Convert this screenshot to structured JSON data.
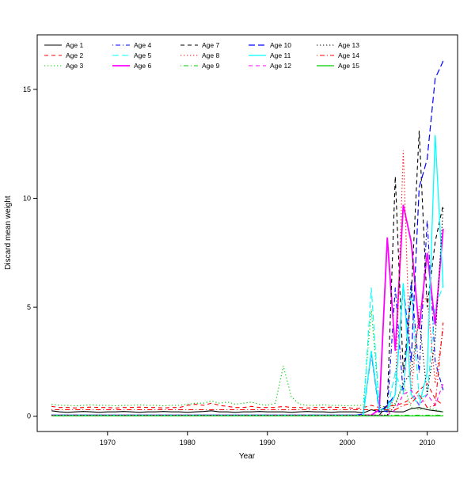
{
  "chart_data": {
    "type": "line",
    "title": "",
    "xlabel": "Year",
    "ylabel": "Discard mean weight",
    "legend_position": "top-left",
    "grid": false,
    "xticks": [
      1970,
      1980,
      1990,
      2000,
      2010
    ],
    "yticks": [
      0,
      5,
      10,
      15
    ],
    "xlim": [
      1963,
      2012
    ],
    "ylim": [
      0,
      16.3
    ],
    "xlim_internal": [
      1961.2,
      2013.8
    ],
    "ylim_internal": [
      -0.7,
      17.5
    ],
    "x": [
      1963,
      1964,
      1965,
      1966,
      1967,
      1968,
      1969,
      1970,
      1971,
      1972,
      1973,
      1974,
      1975,
      1976,
      1977,
      1978,
      1979,
      1980,
      1981,
      1982,
      1983,
      1984,
      1985,
      1986,
      1987,
      1988,
      1989,
      1990,
      1991,
      1992,
      1993,
      1994,
      1995,
      1996,
      1997,
      1998,
      1999,
      2000,
      2001,
      2002,
      2003,
      2004,
      2005,
      2006,
      2007,
      2008,
      2009,
      2010,
      2011,
      2012
    ],
    "series": [
      {
        "name": "Age 1",
        "color": "#000000",
        "line_style": "solid",
        "width": 1.1,
        "values": [
          0.25,
          0.2,
          0.18,
          0.2,
          0.22,
          0.2,
          0.18,
          0.2,
          0.2,
          0.22,
          0.2,
          0.18,
          0.2,
          0.2,
          0.22,
          0.2,
          0.2,
          0.18,
          0.2,
          0.22,
          0.25,
          0.2,
          0.2,
          0.18,
          0.2,
          0.2,
          0.22,
          0.2,
          0.2,
          0.2,
          0.18,
          0.2,
          0.22,
          0.2,
          0.2,
          0.18,
          0.2,
          0.2,
          0.2,
          0.15,
          0.3,
          0.2,
          0.25,
          0.2,
          0.2,
          0.35,
          0.4,
          0.3,
          0.25,
          0.2
        ]
      },
      {
        "name": "Age 2",
        "color": "#FF0000",
        "line_style": "dashed",
        "width": 1.1,
        "values": [
          0.45,
          0.4,
          0.4,
          0.38,
          0.4,
          0.42,
          0.4,
          0.4,
          0.38,
          0.4,
          0.4,
          0.42,
          0.4,
          0.4,
          0.38,
          0.4,
          0.4,
          0.5,
          0.55,
          0.5,
          0.6,
          0.5,
          0.45,
          0.4,
          0.4,
          0.45,
          0.4,
          0.4,
          0.4,
          0.45,
          0.4,
          0.4,
          0.38,
          0.4,
          0.4,
          0.42,
          0.4,
          0.4,
          0.35,
          0.4,
          0.5,
          0.4,
          0.45,
          0.5,
          0.6,
          0.8,
          1.2,
          1.5,
          0.8,
          0.5
        ]
      },
      {
        "name": "Age 3",
        "color": "#00CD00",
        "line_style": "dotted",
        "width": 1.1,
        "values": [
          0.55,
          0.5,
          0.5,
          0.48,
          0.5,
          0.52,
          0.5,
          0.5,
          0.48,
          0.5,
          0.5,
          0.52,
          0.5,
          0.5,
          0.48,
          0.5,
          0.5,
          0.55,
          0.6,
          0.6,
          0.7,
          0.6,
          0.65,
          0.55,
          0.6,
          0.65,
          0.55,
          0.5,
          0.6,
          2.3,
          0.9,
          0.55,
          0.5,
          0.5,
          0.52,
          0.5,
          0.5,
          0.48,
          0.5,
          0.5,
          4.9,
          0.5,
          0.4,
          0.6,
          1.5,
          0.4,
          0.3,
          0.4,
          0.3,
          0.2
        ]
      },
      {
        "name": "Age 4",
        "color": "#0000FF",
        "line_style": "dash-dot",
        "width": 1.1,
        "values": [
          0.05,
          0.05,
          0.05,
          0.05,
          0.05,
          0.05,
          0.05,
          0.05,
          0.05,
          0.05,
          0.05,
          0.05,
          0.05,
          0.05,
          0.05,
          0.05,
          0.05,
          0.05,
          0.05,
          0.05,
          0.05,
          0.05,
          0.05,
          0.05,
          0.05,
          0.05,
          0.05,
          0.05,
          0.05,
          0.05,
          0.05,
          0.05,
          0.05,
          0.05,
          0.05,
          0.05,
          0.05,
          0.05,
          0.05,
          0.1,
          2.9,
          0.3,
          0.2,
          5.9,
          1.0,
          6.2,
          2.0,
          9.0,
          2.5,
          1.2
        ]
      },
      {
        "name": "Age 5",
        "color": "#00FFFF",
        "line_style": "long-dash",
        "width": 1.1,
        "values": [
          0.05,
          0.05,
          0.05,
          0.05,
          0.05,
          0.05,
          0.05,
          0.05,
          0.05,
          0.05,
          0.05,
          0.05,
          0.05,
          0.05,
          0.05,
          0.05,
          0.05,
          0.05,
          0.05,
          0.05,
          0.05,
          0.05,
          0.05,
          0.05,
          0.05,
          0.05,
          0.05,
          0.05,
          0.05,
          0.05,
          0.05,
          0.05,
          0.05,
          0.05,
          0.05,
          0.05,
          0.05,
          0.05,
          0.05,
          0.1,
          5.9,
          0.4,
          0.3,
          2.0,
          1.0,
          5.8,
          0.8,
          1.0,
          5.0,
          6.0
        ]
      },
      {
        "name": "Age 6",
        "color": "#FF00FF",
        "line_style": "solid",
        "width": 1.8,
        "values": [
          0.05,
          0.05,
          0.05,
          0.05,
          0.05,
          0.05,
          0.05,
          0.05,
          0.05,
          0.05,
          0.05,
          0.05,
          0.05,
          0.05,
          0.05,
          0.05,
          0.05,
          0.05,
          0.05,
          0.05,
          0.05,
          0.05,
          0.05,
          0.05,
          0.05,
          0.05,
          0.05,
          0.05,
          0.05,
          0.05,
          0.05,
          0.05,
          0.05,
          0.05,
          0.05,
          0.05,
          0.05,
          0.05,
          0.05,
          0.05,
          0.05,
          0.3,
          8.2,
          3.0,
          9.7,
          8.0,
          4.0,
          7.5,
          4.2,
          8.6
        ]
      },
      {
        "name": "Age 7",
        "color": "#000000",
        "line_style": "dashed",
        "width": 1.1,
        "values": [
          0.05,
          0.05,
          0.05,
          0.05,
          0.05,
          0.05,
          0.05,
          0.05,
          0.05,
          0.05,
          0.05,
          0.05,
          0.05,
          0.05,
          0.05,
          0.05,
          0.05,
          0.05,
          0.05,
          0.05,
          0.05,
          0.05,
          0.05,
          0.05,
          0.05,
          0.05,
          0.05,
          0.05,
          0.05,
          0.05,
          0.05,
          0.05,
          0.05,
          0.05,
          0.05,
          0.05,
          0.05,
          0.05,
          0.05,
          0.05,
          0.05,
          0.05,
          0.5,
          11.0,
          2.0,
          5.5,
          13.1,
          5.0,
          8.0,
          9.7
        ]
      },
      {
        "name": "Age 8",
        "color": "#FF0000",
        "line_style": "dotted",
        "width": 1.1,
        "values": [
          0.05,
          0.05,
          0.05,
          0.05,
          0.05,
          0.05,
          0.05,
          0.05,
          0.05,
          0.05,
          0.05,
          0.05,
          0.05,
          0.05,
          0.05,
          0.05,
          0.05,
          0.05,
          0.05,
          0.05,
          0.05,
          0.05,
          0.05,
          0.05,
          0.05,
          0.05,
          0.05,
          0.05,
          0.05,
          0.05,
          0.05,
          0.05,
          0.05,
          0.05,
          0.05,
          0.05,
          0.05,
          0.05,
          0.05,
          0.05,
          0.05,
          0.05,
          0.05,
          1.0,
          12.2,
          1.0,
          5.0,
          5.5,
          1.5,
          4.0
        ]
      },
      {
        "name": "Age 9",
        "color": "#00CD00",
        "line_style": "dash-dot",
        "width": 1.1,
        "values": [
          0.05,
          0.05,
          0.05,
          0.05,
          0.05,
          0.05,
          0.05,
          0.05,
          0.05,
          0.05,
          0.05,
          0.05,
          0.05,
          0.05,
          0.05,
          0.05,
          0.05,
          0.05,
          0.05,
          0.05,
          0.05,
          0.05,
          0.05,
          0.05,
          0.05,
          0.05,
          0.05,
          0.05,
          0.05,
          0.05,
          0.05,
          0.05,
          0.05,
          0.05,
          0.05,
          0.05,
          0.05,
          0.05,
          0.05,
          0.05,
          0.05,
          0.05,
          0.05,
          0.05,
          0.05,
          0.05,
          0.05,
          0.05,
          0.05,
          0.05
        ]
      },
      {
        "name": "Age 10",
        "color": "#0000FF",
        "line_style": "long-dash",
        "width": 1.2,
        "values": [
          0.05,
          0.05,
          0.05,
          0.05,
          0.05,
          0.05,
          0.05,
          0.05,
          0.05,
          0.05,
          0.05,
          0.05,
          0.05,
          0.05,
          0.05,
          0.05,
          0.05,
          0.05,
          0.05,
          0.05,
          0.05,
          0.05,
          0.05,
          0.05,
          0.05,
          0.05,
          0.05,
          0.05,
          0.05,
          0.05,
          0.05,
          0.05,
          0.05,
          0.05,
          0.05,
          0.05,
          0.05,
          0.05,
          0.05,
          0.1,
          2.9,
          0.2,
          0.5,
          1.0,
          6.0,
          2.5,
          10.5,
          11.8,
          15.5,
          16.3
        ]
      },
      {
        "name": "Age 11",
        "color": "#00FFFF",
        "line_style": "solid",
        "width": 1.3,
        "values": [
          0.05,
          0.05,
          0.05,
          0.05,
          0.05,
          0.05,
          0.05,
          0.05,
          0.05,
          0.05,
          0.05,
          0.05,
          0.05,
          0.05,
          0.05,
          0.05,
          0.05,
          0.05,
          0.05,
          0.05,
          0.05,
          0.05,
          0.05,
          0.05,
          0.05,
          0.05,
          0.05,
          0.05,
          0.05,
          0.05,
          0.05,
          0.05,
          0.05,
          0.05,
          0.05,
          0.05,
          0.05,
          0.05,
          0.05,
          0.05,
          3.0,
          0.3,
          0.3,
          1.0,
          6.1,
          1.0,
          0.5,
          2.0,
          12.9,
          5.9
        ]
      },
      {
        "name": "Age 12",
        "color": "#FF00FF",
        "line_style": "dashed",
        "width": 1.1,
        "values": [
          0.05,
          0.05,
          0.05,
          0.05,
          0.05,
          0.05,
          0.05,
          0.05,
          0.05,
          0.05,
          0.05,
          0.05,
          0.05,
          0.05,
          0.05,
          0.05,
          0.05,
          0.05,
          0.05,
          0.05,
          0.05,
          0.05,
          0.05,
          0.05,
          0.05,
          0.05,
          0.05,
          0.05,
          0.05,
          0.05,
          0.05,
          0.05,
          0.05,
          0.05,
          0.05,
          0.05,
          0.05,
          0.05,
          0.05,
          0.05,
          0.05,
          0.05,
          0.05,
          0.3,
          1.0,
          1.2,
          0.5,
          1.0,
          0.5,
          1.5
        ]
      },
      {
        "name": "Age 13",
        "color": "#000000",
        "line_style": "dotted",
        "width": 1.1,
        "values": [
          0.05,
          0.05,
          0.05,
          0.05,
          0.05,
          0.05,
          0.05,
          0.05,
          0.05,
          0.05,
          0.05,
          0.05,
          0.05,
          0.05,
          0.05,
          0.05,
          0.05,
          0.05,
          0.05,
          0.05,
          0.05,
          0.05,
          0.05,
          0.05,
          0.05,
          0.05,
          0.05,
          0.05,
          0.05,
          0.05,
          0.05,
          0.05,
          0.05,
          0.05,
          0.05,
          0.05,
          0.05,
          0.05,
          0.05,
          0.05,
          0.05,
          0.05,
          0.05,
          0.5,
          1.5,
          2.0,
          4.5,
          1.0,
          3.5,
          9.6
        ]
      },
      {
        "name": "Age 14",
        "color": "#FF0000",
        "line_style": "dash-dot",
        "width": 1.1,
        "values": [
          0.3,
          0.3,
          0.3,
          0.3,
          0.3,
          0.3,
          0.3,
          0.3,
          0.3,
          0.3,
          0.3,
          0.3,
          0.3,
          0.3,
          0.3,
          0.3,
          0.3,
          0.3,
          0.3,
          0.3,
          0.3,
          0.3,
          0.3,
          0.3,
          0.3,
          0.3,
          0.3,
          0.3,
          0.3,
          0.3,
          0.3,
          0.3,
          0.3,
          0.3,
          0.3,
          0.3,
          0.3,
          0.3,
          0.3,
          0.3,
          0.3,
          0.3,
          0.3,
          0.3,
          0.5,
          0.6,
          1.0,
          0.4,
          0.5,
          4.3
        ]
      },
      {
        "name": "Age 15",
        "color": "#00CD00",
        "line_style": "solid",
        "width": 1.2,
        "values": [
          0.02,
          0.02,
          0.02,
          0.02,
          0.02,
          0.02,
          0.02,
          0.02,
          0.02,
          0.02,
          0.02,
          0.02,
          0.02,
          0.02,
          0.02,
          0.02,
          0.02,
          0.02,
          0.02,
          0.02,
          0.02,
          0.02,
          0.02,
          0.02,
          0.02,
          0.02,
          0.02,
          0.02,
          0.02,
          0.02,
          0.02,
          0.02,
          0.02,
          0.02,
          0.02,
          0.02,
          0.02,
          0.02,
          0.02,
          0.02,
          0.02,
          0.02,
          0.02,
          0.02,
          0.02,
          0.02,
          0.02,
          0.02,
          0.02,
          0.02
        ]
      }
    ]
  }
}
